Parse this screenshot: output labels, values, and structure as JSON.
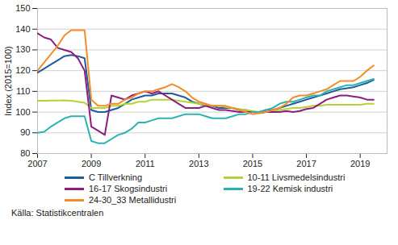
{
  "chart_data": {
    "type": "line",
    "y_label": "Index (2015=100)",
    "caption": "Källa: Statistikcentralen",
    "x": [
      2007,
      2007.25,
      2007.5,
      2007.75,
      2008,
      2008.25,
      2008.5,
      2008.75,
      2009,
      2009.25,
      2009.5,
      2009.75,
      2010,
      2010.25,
      2010.5,
      2010.75,
      2011,
      2011.25,
      2011.5,
      2011.75,
      2012,
      2012.25,
      2012.5,
      2012.75,
      2013,
      2013.25,
      2013.5,
      2013.75,
      2014,
      2014.25,
      2014.5,
      2014.75,
      2015,
      2015.25,
      2015.5,
      2015.75,
      2016,
      2016.25,
      2016.5,
      2016.75,
      2017,
      2017.25,
      2017.5,
      2017.75,
      2018,
      2018.25,
      2018.5,
      2018.75,
      2019,
      2019.25,
      2019.5
    ],
    "xlim": [
      2007,
      2020
    ],
    "xticks": [
      2007,
      2009,
      2011,
      2013,
      2015,
      2017,
      2019
    ],
    "ylim": [
      80,
      150
    ],
    "yticks": [
      80,
      90,
      100,
      110,
      120,
      130,
      140,
      150
    ],
    "grid": true,
    "series": [
      {
        "name": "C Tillverkning",
        "color": "#1f5c99",
        "values": [
          119,
          121,
          123,
          125,
          127,
          127.5,
          127,
          126,
          101,
          100,
          100,
          101,
          102,
          104,
          106,
          107,
          108,
          108,
          109,
          109,
          109,
          108,
          107,
          105,
          104,
          103,
          103,
          102,
          102,
          102,
          101,
          101,
          100,
          100,
          101,
          101,
          102,
          103,
          104,
          105,
          106,
          107,
          108,
          109,
          110,
          111,
          111.5,
          112,
          113,
          114,
          115.5
        ]
      },
      {
        "name": "10-11 Livsmedelsindustri",
        "color": "#b5d334",
        "values": [
          105.5,
          105.5,
          105.6,
          105.6,
          105.7,
          105.5,
          105,
          104.5,
          102,
          102,
          102,
          103,
          103,
          104,
          104,
          105,
          105,
          106,
          106,
          106,
          106,
          105.5,
          105,
          104.5,
          104,
          103.5,
          103,
          103,
          102.5,
          102,
          101.5,
          101,
          100.5,
          100,
          100,
          100.5,
          101,
          101.5,
          102,
          102,
          102.5,
          103,
          103,
          103.5,
          103.5,
          103.5,
          103.5,
          103.5,
          103.5,
          104,
          104
        ]
      },
      {
        "name": "16-17 Skogsindustri",
        "color": "#8e1b7f",
        "values": [
          138,
          136,
          135,
          131,
          130,
          129,
          126,
          120,
          93,
          91,
          89,
          108,
          107,
          106,
          108,
          109,
          110,
          109,
          110,
          108,
          106,
          104,
          102,
          102,
          102,
          103,
          102,
          101,
          101,
          100.5,
          100,
          100,
          100,
          99.5,
          100,
          100,
          100,
          100.5,
          100,
          100.5,
          101.5,
          102,
          104,
          106,
          107,
          108,
          108,
          107.5,
          107,
          106,
          106
        ]
      },
      {
        "name": "19-22 Kemisk industri",
        "color": "#2bb3b3",
        "values": [
          90,
          90.5,
          93,
          95,
          97,
          98,
          98,
          98,
          86,
          85,
          85,
          87,
          89,
          90,
          92,
          95,
          95,
          96,
          97,
          97,
          97,
          98,
          99,
          99,
          99,
          98,
          97,
          97,
          97,
          98,
          99,
          99,
          100,
          100,
          101,
          102,
          104,
          105,
          105,
          106,
          107,
          108,
          108,
          110,
          111,
          112,
          113,
          113,
          114,
          115,
          116
        ]
      },
      {
        "name": "24-30_33 Metallidustri",
        "color": "#f28c28",
        "values": [
          120,
          124,
          128,
          132,
          137,
          139.5,
          139.5,
          139.5,
          106,
          103,
          103,
          104,
          104,
          106,
          107,
          109,
          110,
          110,
          111,
          112,
          113.5,
          112,
          110,
          107,
          105,
          104,
          103,
          103,
          103,
          102,
          101,
          100,
          99,
          99.5,
          100,
          101,
          102,
          104,
          107,
          108,
          108,
          109,
          110,
          111,
          113,
          115,
          115,
          115,
          117,
          120,
          122.5
        ]
      }
    ]
  }
}
